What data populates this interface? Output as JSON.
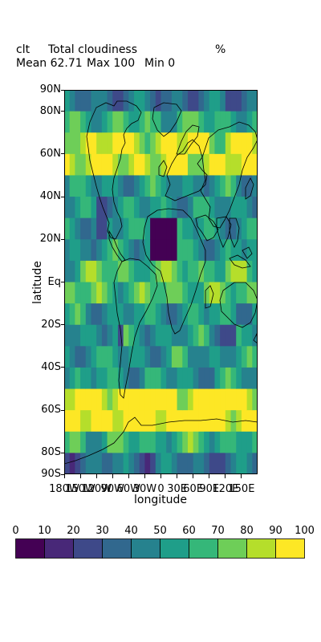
{
  "header": {
    "var_name": "clt",
    "long_name": "Total cloudiness",
    "units": "%",
    "mean_label": "Mean 62.71",
    "max_label": "Max 100",
    "min_label": "Min 0"
  },
  "chart_data": {
    "type": "heatmap",
    "xlabel": "longitude",
    "ylabel": "latitude",
    "xlim": [
      -180,
      180
    ],
    "ylim": [
      -90,
      90
    ],
    "lat_ticks": [
      {
        "value": 90,
        "label": "90N"
      },
      {
        "value": 80,
        "label": "80N"
      },
      {
        "value": 60,
        "label": "60N"
      },
      {
        "value": 40,
        "label": "40N"
      },
      {
        "value": 20,
        "label": "20N"
      },
      {
        "value": 0,
        "label": "Eq"
      },
      {
        "value": -20,
        "label": "20S"
      },
      {
        "value": -40,
        "label": "40S"
      },
      {
        "value": -60,
        "label": "60S"
      },
      {
        "value": -80,
        "label": "80S"
      },
      {
        "value": -90,
        "label": "90S"
      }
    ],
    "lon_ticks": [
      {
        "value": -180,
        "label": "180W"
      },
      {
        "value": -150,
        "label": "150W"
      },
      {
        "value": -120,
        "label": "120W"
      },
      {
        "value": -90,
        "label": "90W"
      },
      {
        "value": -60,
        "label": "60W"
      },
      {
        "value": -30,
        "label": "30W"
      },
      {
        "value": 0,
        "label": "0"
      },
      {
        "value": 30,
        "label": "30E"
      },
      {
        "value": 60,
        "label": "60E"
      },
      {
        "value": 90,
        "label": "90E"
      },
      {
        "value": 120,
        "label": "120E"
      },
      {
        "value": 150,
        "label": "150E"
      }
    ],
    "colorbar": {
      "levels": [
        "0",
        "10",
        "20",
        "30",
        "40",
        "50",
        "60",
        "70",
        "80",
        "90",
        "100"
      ],
      "colors": [
        "#440154",
        "#482878",
        "#3e4989",
        "#31688e",
        "#26828e",
        "#1f9e89",
        "#35b779",
        "#6ece58",
        "#b5de2b",
        "#fde725"
      ]
    }
  }
}
